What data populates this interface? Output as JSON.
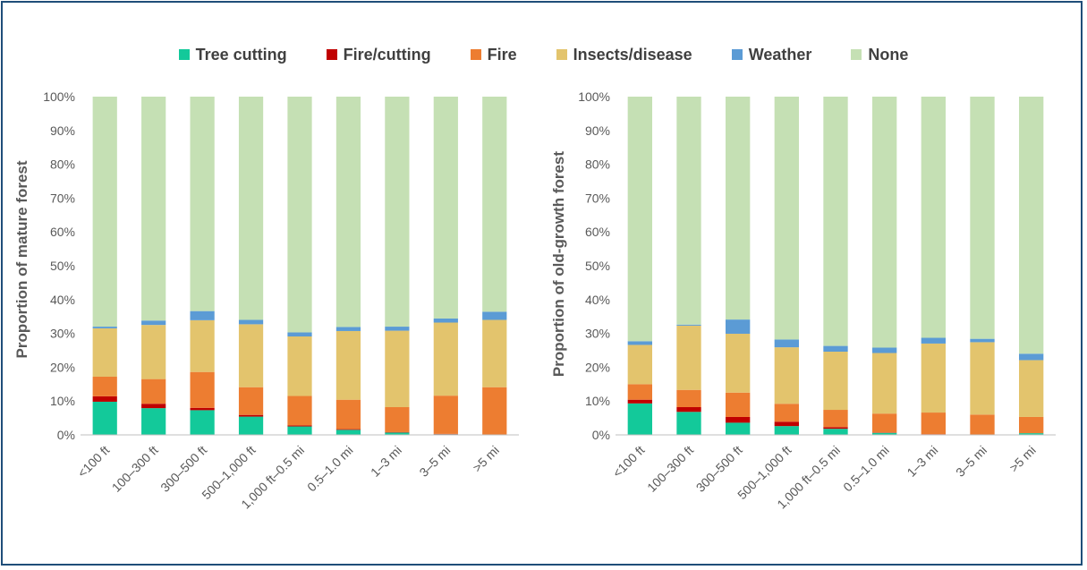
{
  "legend": [
    {
      "name": "Tree cutting",
      "color": "#13c99a"
    },
    {
      "name": "Fire/cutting",
      "color": "#c00000"
    },
    {
      "name": "Fire",
      "color": "#ed7d31"
    },
    {
      "name": "Insects/disease",
      "color": "#e3c46d"
    },
    {
      "name": "Weather",
      "color": "#5b9bd5"
    },
    {
      "name": "None",
      "color": "#c5e0b4"
    }
  ],
  "chart_data": [
    {
      "type": "bar",
      "stacked": true,
      "ylabel": "Proportion of mature forest",
      "xlabel": "",
      "ylim": [
        0,
        100
      ],
      "y_ticks": [
        "0%",
        "10%",
        "20%",
        "30%",
        "40%",
        "50%",
        "60%",
        "70%",
        "80%",
        "90%",
        "100%"
      ],
      "categories": [
        "<100 ft",
        "100–300 ft",
        "300–500 ft",
        "500–1,000 ft",
        "1,000 ft–0.5 mi",
        "0.5–1.0 mi",
        "1–3 mi",
        "3–5 mi",
        ">5 mi"
      ],
      "series": [
        {
          "name": "Tree cutting",
          "values": [
            9.8,
            7.9,
            7.3,
            5.4,
            2.5,
            1.5,
            0.7,
            0.2,
            0.1
          ]
        },
        {
          "name": "Fire/cutting",
          "values": [
            1.6,
            1.3,
            0.7,
            0.5,
            0.3,
            0.2,
            0.1,
            0.1,
            0.0
          ]
        },
        {
          "name": "Fire",
          "values": [
            5.8,
            7.3,
            10.6,
            8.2,
            8.7,
            8.7,
            7.4,
            11.3,
            14.0
          ]
        },
        {
          "name": "Insects/disease",
          "values": [
            14.3,
            16.0,
            15.3,
            18.6,
            17.6,
            20.3,
            22.6,
            21.6,
            19.9
          ]
        },
        {
          "name": "Weather",
          "values": [
            0.5,
            1.3,
            2.7,
            1.3,
            1.2,
            1.2,
            1.2,
            1.2,
            2.4
          ]
        },
        {
          "name": "None",
          "values": [
            68.0,
            66.2,
            63.4,
            66.0,
            69.7,
            68.1,
            68.0,
            65.6,
            63.6
          ]
        }
      ]
    },
    {
      "type": "bar",
      "stacked": true,
      "ylabel": "Proportion of old-growth forest",
      "xlabel": "",
      "ylim": [
        0,
        100
      ],
      "y_ticks": [
        "0%",
        "10%",
        "20%",
        "30%",
        "40%",
        "50%",
        "60%",
        "70%",
        "80%",
        "90%",
        "100%"
      ],
      "categories": [
        "<100 ft",
        "100–300 ft",
        "300–500 ft",
        "500–1,000 ft",
        "1,000 ft–0.5 mi",
        "0.5–1.0 mi",
        "1–3 mi",
        "3–5 mi",
        ">5 mi"
      ],
      "series": [
        {
          "name": "Tree cutting",
          "values": [
            9.3,
            6.8,
            3.6,
            2.6,
            1.8,
            0.6,
            0.1,
            0.1,
            0.5
          ]
        },
        {
          "name": "Fire/cutting",
          "values": [
            1.1,
            1.4,
            1.7,
            1.3,
            0.5,
            0.1,
            0.1,
            0.0,
            0.0
          ]
        },
        {
          "name": "Fire",
          "values": [
            4.6,
            5.1,
            7.2,
            5.3,
            5.1,
            5.6,
            6.4,
            5.9,
            4.8
          ]
        },
        {
          "name": "Insects/disease",
          "values": [
            11.6,
            19.0,
            17.4,
            16.7,
            17.2,
            17.9,
            20.4,
            21.4,
            16.8
          ]
        },
        {
          "name": "Weather",
          "values": [
            1.1,
            0.3,
            4.2,
            2.3,
            1.7,
            1.6,
            1.7,
            1.0,
            1.9
          ]
        },
        {
          "name": "None",
          "values": [
            72.3,
            67.4,
            65.9,
            71.8,
            73.7,
            74.2,
            71.3,
            71.6,
            76.0
          ]
        }
      ]
    }
  ]
}
